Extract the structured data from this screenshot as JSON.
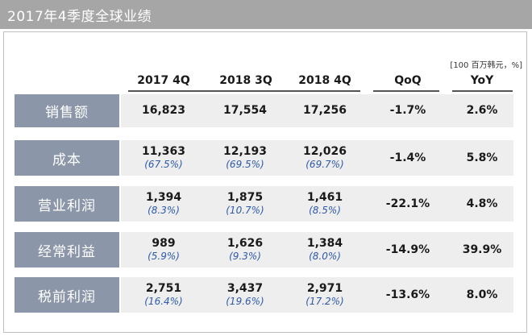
{
  "title": "2017年4季度全球业绩",
  "unit_note": "[100  百万韩元，%]",
  "columns": [
    "2017 4Q",
    "2018 3Q",
    "2018 4Q",
    "QoQ",
    "YoY"
  ],
  "rows": [
    {
      "label": "销售额",
      "v1": "16,823",
      "p1": "",
      "v2": "17,554",
      "p2": "",
      "v3": "17,256",
      "p3": "",
      "qoq": "-1.7%",
      "yoy": "2.6%"
    },
    {
      "label": "成本",
      "v1": "11,363",
      "p1": "(67.5%)",
      "v2": "12,193",
      "p2": "(69.5%)",
      "v3": "12,026",
      "p3": "(69.7%)",
      "qoq": "-1.4%",
      "yoy": "5.8%"
    },
    {
      "label": "营业利润",
      "v1": "1,394",
      "p1": "(8.3%)",
      "v2": "1,875",
      "p2": "(10.7%)",
      "v3": "1,461",
      "p3": "(8.5%)",
      "qoq": "-22.1%",
      "yoy": "4.8%"
    },
    {
      "label": "经常利益",
      "v1": "989",
      "p1": "(5.9%)",
      "v2": "1,626",
      "p2": "(9.3%)",
      "v3": "1,384",
      "p3": "(8.0%)",
      "qoq": "-14.9%",
      "yoy": "39.9%"
    },
    {
      "label": "税前利润",
      "v1": "2,751",
      "p1": "(16.4%)",
      "v2": "3,437",
      "p2": "(19.6%)",
      "v3": "2,971",
      "p3": "(17.2%)",
      "qoq": "-13.6%",
      "yoy": "8.0%"
    }
  ]
}
